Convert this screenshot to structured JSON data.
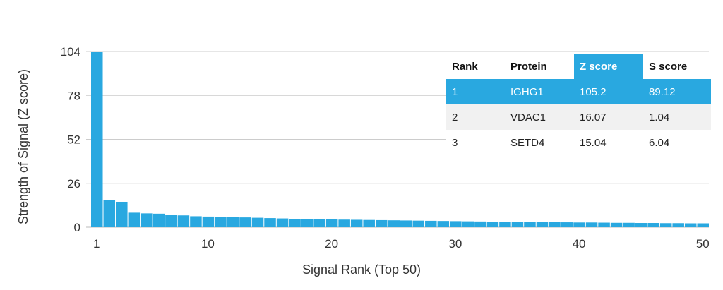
{
  "chart_data": {
    "type": "bar",
    "xlabel": "Signal Rank (Top 50)",
    "ylabel": "Strength of Signal (Z score)",
    "ylim": [
      0,
      104
    ],
    "yticks": [
      0,
      26,
      52,
      78,
      104
    ],
    "xticks": [
      1,
      10,
      20,
      30,
      40,
      50
    ],
    "grid": true,
    "bar_color": "#29a8e0",
    "x": [
      1,
      2,
      3,
      4,
      5,
      6,
      7,
      8,
      9,
      10,
      11,
      12,
      13,
      14,
      15,
      16,
      17,
      18,
      19,
      20,
      21,
      22,
      23,
      24,
      25,
      26,
      27,
      28,
      29,
      30,
      31,
      32,
      33,
      34,
      35,
      36,
      37,
      38,
      39,
      40,
      41,
      42,
      43,
      44,
      45,
      46,
      47,
      48,
      49,
      50
    ],
    "values": [
      105.2,
      16.07,
      15.04,
      8.6,
      8.2,
      8.0,
      7.2,
      7.0,
      6.5,
      6.3,
      6.1,
      5.9,
      5.8,
      5.6,
      5.4,
      5.2,
      5.0,
      4.9,
      4.8,
      4.6,
      4.5,
      4.4,
      4.3,
      4.2,
      4.1,
      4.0,
      3.9,
      3.8,
      3.7,
      3.6,
      3.5,
      3.4,
      3.3,
      3.3,
      3.2,
      3.1,
      3.0,
      3.0,
      2.9,
      2.8,
      2.8,
      2.7,
      2.6,
      2.6,
      2.5,
      2.5,
      2.4,
      2.4,
      2.3,
      2.3
    ]
  },
  "table": {
    "headers": [
      "Rank",
      "Protein",
      "Z score",
      "S score"
    ],
    "rows": [
      [
        "1",
        "IGHG1",
        "105.2",
        "89.12"
      ],
      [
        "2",
        "VDAC1",
        "16.07",
        "1.04"
      ],
      [
        "3",
        "SETD4",
        "15.04",
        "6.04"
      ]
    ],
    "highlight_color": "#29a8e0"
  }
}
